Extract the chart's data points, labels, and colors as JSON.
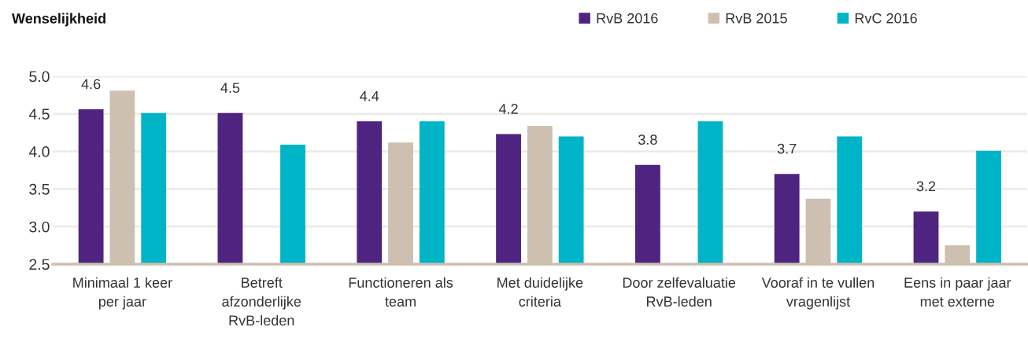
{
  "chart_data": {
    "type": "bar",
    "title": "Wenselijkheid",
    "categories": [
      "Minimaal 1 keer\nper jaar",
      "Betreft\nafzonderlijke\nRvB-leden",
      "Functioneren als\nteam",
      "Met duidelijke\ncriteria",
      "Door zelfevaluatie\nRvB-leden",
      "Vooraf in te vullen\nvragenlijst",
      "Eens in paar jaar\nmet externe"
    ],
    "series": [
      {
        "name": "RvB 2016",
        "color": "#4f2480",
        "values": [
          4.56,
          4.51,
          4.4,
          4.23,
          3.82,
          3.7,
          3.2
        ],
        "value_labels": [
          "4.6",
          "4.5",
          "4.4",
          "4.2",
          "3.8",
          "3.7",
          "3.2"
        ]
      },
      {
        "name": "RvB 2015",
        "color": "#cdc0b1",
        "values": [
          4.81,
          null,
          4.12,
          4.34,
          null,
          3.37,
          2.75
        ]
      },
      {
        "name": "RvC 2016",
        "color": "#00b4c8",
        "values": [
          4.51,
          4.09,
          4.4,
          4.2,
          4.4,
          4.2,
          4.01
        ]
      }
    ],
    "ylim": [
      2.5,
      5.0
    ],
    "yticks": [
      2.5,
      {
        "value": 3,
        "label": "3.0"
      },
      3.5,
      {
        "value": 4,
        "label": "4.0"
      },
      4.5,
      {
        "value": 5,
        "label": "5.0"
      }
    ],
    "grid": "y",
    "legend": "top right"
  }
}
